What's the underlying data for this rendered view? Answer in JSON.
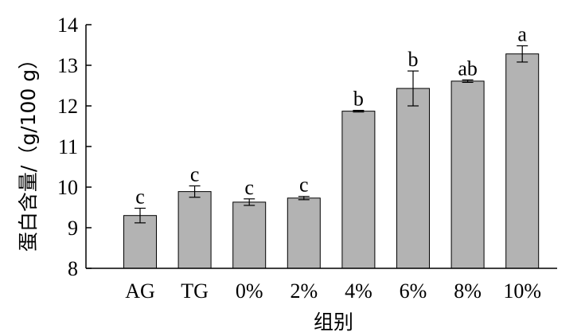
{
  "chart_data": {
    "type": "bar",
    "title": "",
    "xlabel": "组别",
    "ylabel": "蛋白含量/（g/100 g）",
    "ylim": [
      8,
      14
    ],
    "yticks": [
      8,
      9,
      10,
      11,
      12,
      13,
      14
    ],
    "categories": [
      "AG",
      "TG",
      "0%",
      "2%",
      "4%",
      "6%",
      "8%",
      "10%"
    ],
    "values": [
      9.3,
      9.89,
      9.63,
      9.73,
      11.87,
      12.43,
      12.61,
      13.28
    ],
    "errors": [
      0.18,
      0.14,
      0.08,
      0.04,
      0.02,
      0.43,
      0.03,
      0.2
    ],
    "significance": [
      "c",
      "c",
      "c",
      "c",
      "b",
      "b",
      "ab",
      "a"
    ],
    "bar_color": "#b3b3b3",
    "edge_color": "#000000",
    "grid": false,
    "legend": "none"
  }
}
